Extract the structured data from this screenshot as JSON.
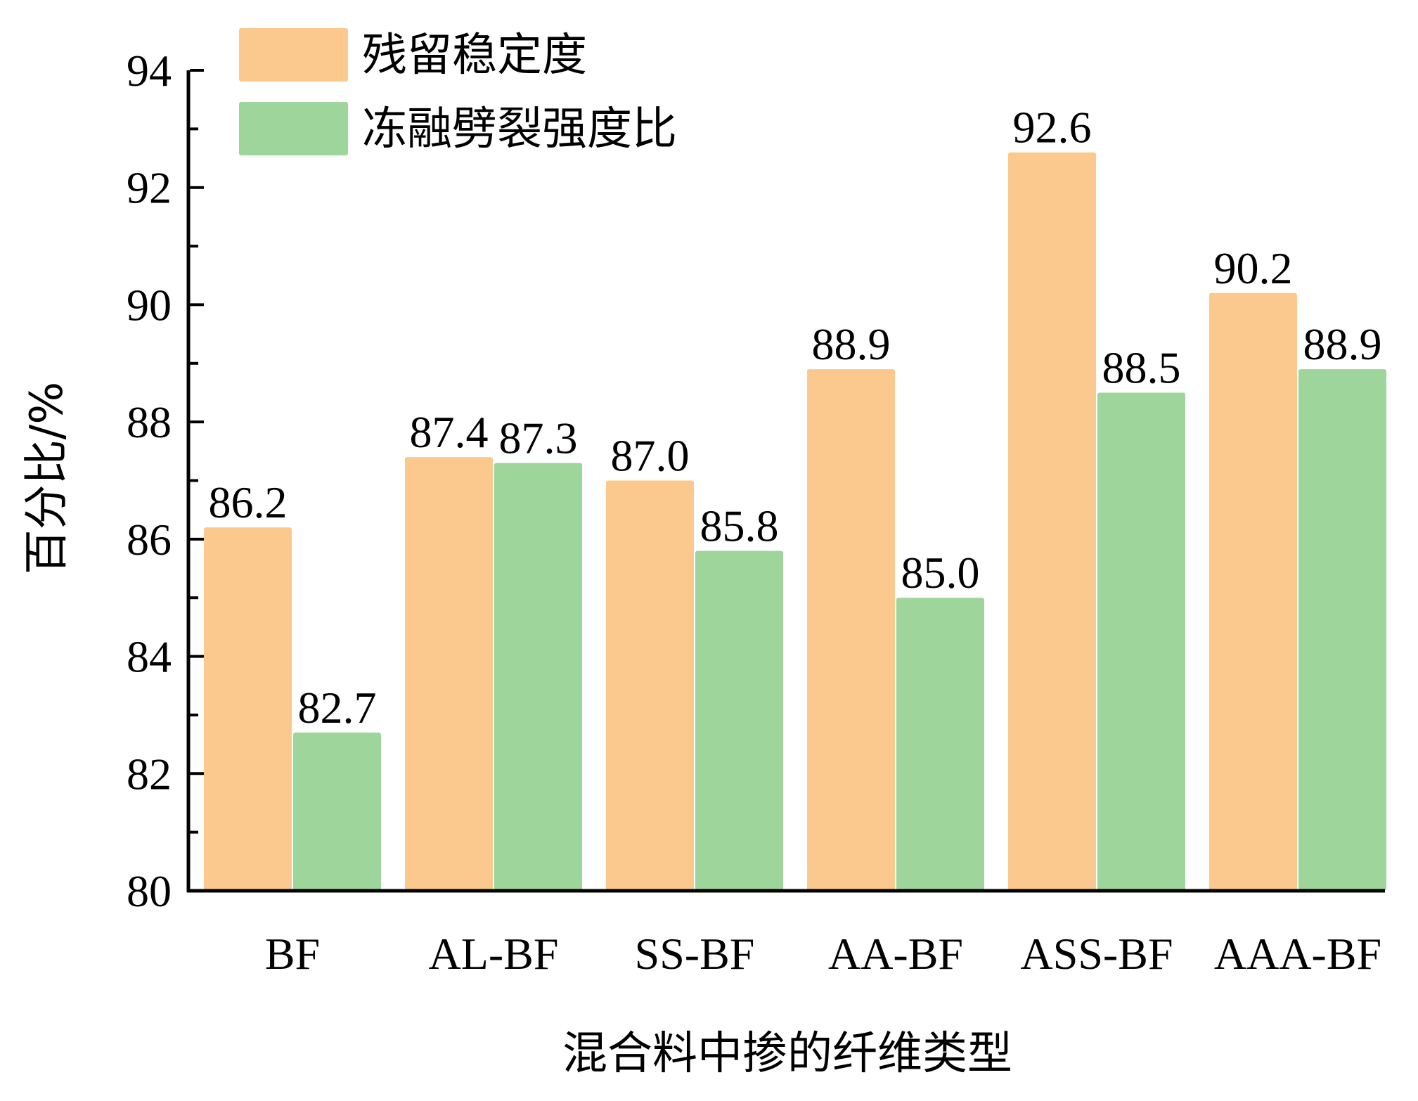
{
  "chart_data": {
    "type": "bar",
    "categories": [
      "BF",
      "AL-BF",
      "SS-BF",
      "AA-BF",
      "ASS-BF",
      "AAA-BF"
    ],
    "series": [
      {
        "name": "残留稳定度",
        "color": "#fbc98e",
        "values": [
          86.2,
          87.4,
          87.0,
          88.9,
          92.6,
          90.2
        ],
        "labels": [
          "86.2",
          "87.4",
          "87.0",
          "88.9",
          "92.6",
          "90.2"
        ]
      },
      {
        "name": "冻融劈裂强度比",
        "color": "#9dd59a",
        "values": [
          82.7,
          87.3,
          85.8,
          85.0,
          88.5,
          88.9
        ],
        "labels": [
          "82.7",
          "87.3",
          "85.8",
          "85.0",
          "88.5",
          "88.9"
        ]
      }
    ],
    "xlabel": "混合料中掺的纤维类型",
    "ylabel": "百分比/%",
    "ylim": [
      80,
      94
    ],
    "yticks": [
      80,
      82,
      84,
      86,
      88,
      90,
      92,
      94
    ],
    "grid": false,
    "legend_position": "top-left"
  }
}
